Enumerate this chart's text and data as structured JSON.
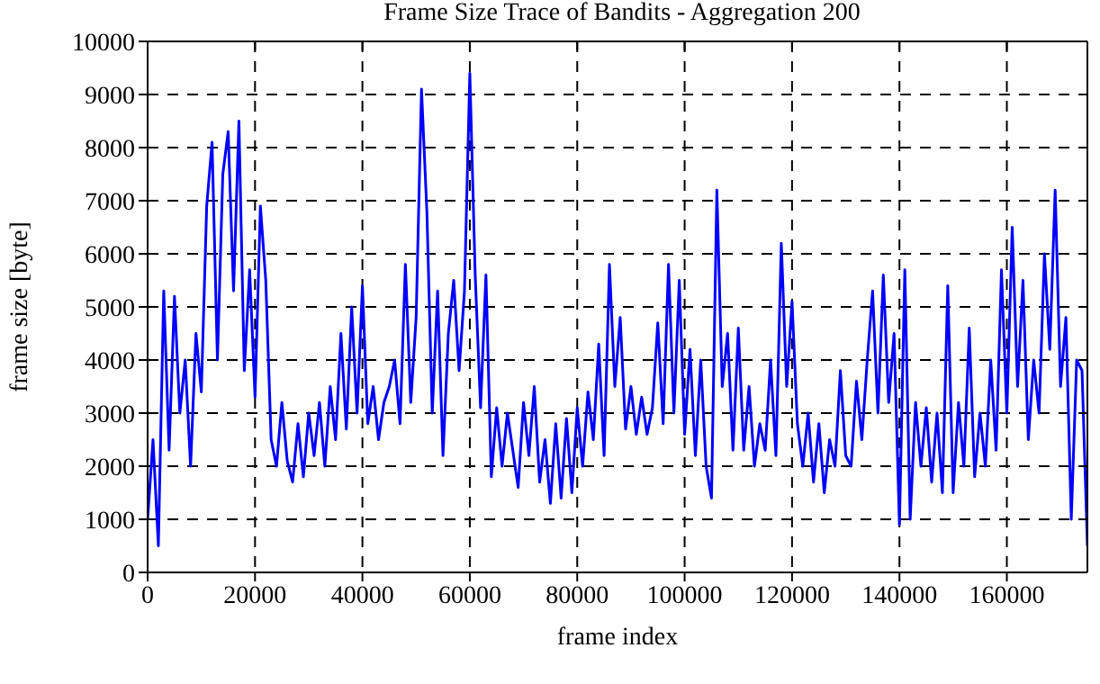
{
  "chart_data": {
    "type": "line",
    "title": "Frame Size Trace of Bandits - Aggregation 200",
    "xlabel": "frame index",
    "ylabel": "frame size [byte]",
    "x": [
      0,
      1000,
      2000,
      3000,
      4000,
      5000,
      6000,
      7000,
      8000,
      9000,
      10000,
      11000,
      12000,
      13000,
      14000,
      15000,
      16000,
      17000,
      18000,
      19000,
      20000,
      21000,
      22000,
      23000,
      24000,
      25000,
      26000,
      27000,
      28000,
      29000,
      30000,
      31000,
      32000,
      33000,
      34000,
      35000,
      36000,
      37000,
      38000,
      39000,
      40000,
      41000,
      42000,
      43000,
      44000,
      45000,
      46000,
      47000,
      48000,
      49000,
      50000,
      51000,
      52000,
      53000,
      54000,
      55000,
      56000,
      57000,
      58000,
      59000,
      60000,
      61000,
      62000,
      63000,
      64000,
      65000,
      66000,
      67000,
      68000,
      69000,
      70000,
      71000,
      72000,
      73000,
      74000,
      75000,
      76000,
      77000,
      78000,
      79000,
      80000,
      81000,
      82000,
      83000,
      84000,
      85000,
      86000,
      87000,
      88000,
      89000,
      90000,
      91000,
      92000,
      93000,
      94000,
      95000,
      96000,
      97000,
      98000,
      99000,
      100000,
      101000,
      102000,
      103000,
      104000,
      105000,
      106000,
      107000,
      108000,
      109000,
      110000,
      111000,
      112000,
      113000,
      114000,
      115000,
      116000,
      117000,
      118000,
      119000,
      120000,
      121000,
      122000,
      123000,
      124000,
      125000,
      126000,
      127000,
      128000,
      129000,
      130000,
      131000,
      132000,
      133000,
      134000,
      135000,
      136000,
      137000,
      138000,
      139000,
      140000,
      141000,
      142000,
      143000,
      144000,
      145000,
      146000,
      147000,
      148000,
      149000,
      150000,
      151000,
      152000,
      153000,
      154000,
      155000,
      156000,
      157000,
      158000,
      159000,
      160000,
      161000,
      162000,
      163000,
      164000,
      165000,
      166000,
      167000,
      168000,
      169000,
      170000,
      171000,
      172000,
      173000,
      174000,
      175000
    ],
    "series": [
      {
        "color": "#0000ff",
        "values": [
          1000,
          2500,
          500,
          5300,
          2300,
          5200,
          3000,
          4000,
          2000,
          4500,
          3400,
          6900,
          8100,
          4000,
          7500,
          8300,
          5300,
          8500,
          3800,
          5700,
          3300,
          6900,
          5500,
          2500,
          2000,
          3200,
          2100,
          1700,
          2800,
          1800,
          3000,
          2200,
          3200,
          2000,
          3500,
          2500,
          4500,
          2700,
          5000,
          3000,
          5400,
          2800,
          3500,
          2500,
          3200,
          3500,
          4000,
          2800,
          5800,
          3200,
          4800,
          9100,
          6800,
          3000,
          5300,
          2200,
          4500,
          5500,
          3800,
          5300,
          9400,
          5600,
          3100,
          5600,
          1800,
          3100,
          2000,
          3000,
          2300,
          1600,
          3200,
          2200,
          3500,
          1700,
          2500,
          1300,
          2800,
          1400,
          2900,
          1500,
          3100,
          2000,
          3400,
          2500,
          4300,
          2200,
          5800,
          3500,
          4800,
          2700,
          3500,
          2600,
          3300,
          2600,
          3100,
          4700,
          2800,
          5800,
          3000,
          5500,
          2600,
          4200,
          2200,
          4000,
          2000,
          1400,
          7200,
          3500,
          4500,
          2300,
          4600,
          2300,
          3500,
          2000,
          2800,
          2300,
          4000,
          2200,
          6200,
          3500,
          5100,
          2800,
          2000,
          3000,
          1700,
          2800,
          1500,
          2500,
          2000,
          3800,
          2200,
          2000,
          3600,
          2500,
          4000,
          5300,
          3000,
          5600,
          3200,
          4500,
          900,
          5700,
          1000,
          3200,
          2000,
          3100,
          1700,
          3000,
          1500,
          5400,
          1500,
          3200,
          2000,
          4600,
          1800,
          3000,
          2000,
          4000,
          2300,
          5700,
          3000,
          6500,
          3500,
          5500,
          2500,
          4000,
          3000,
          6000,
          4200,
          7200,
          3500,
          4800,
          1000,
          4000,
          3800,
          500
        ]
      }
    ],
    "xlim": [
      0,
      175000
    ],
    "xticks": [
      0,
      20000,
      40000,
      60000,
      80000,
      100000,
      120000,
      140000,
      160000
    ],
    "ylim": [
      0,
      10000
    ],
    "yticks": [
      0,
      1000,
      2000,
      3000,
      4000,
      5000,
      6000,
      7000,
      8000,
      9000,
      10000
    ],
    "grid": true,
    "line_style": "solid",
    "marker": "none",
    "legend": false
  }
}
